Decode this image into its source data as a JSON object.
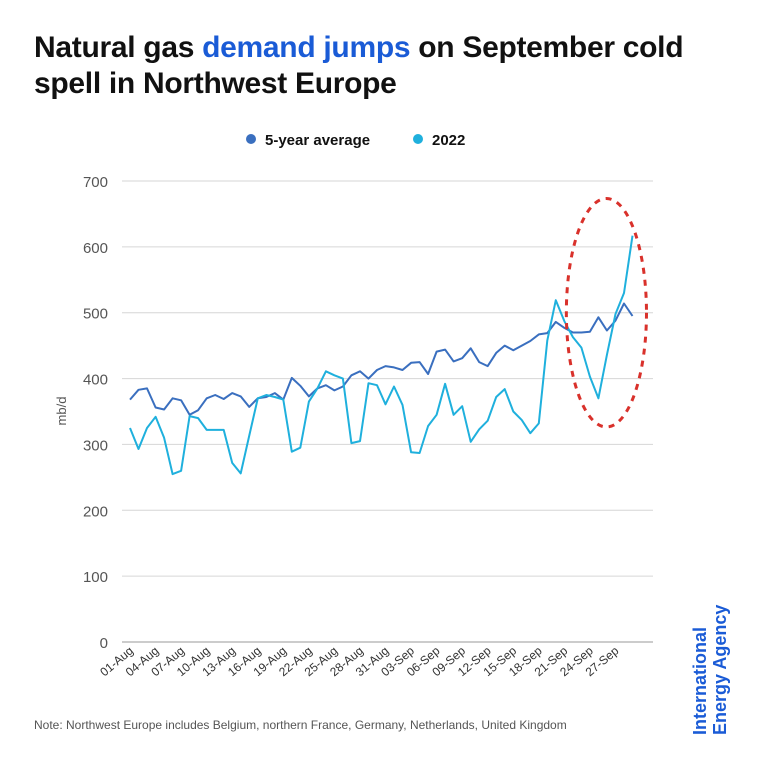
{
  "title": {
    "prefix": "Natural gas ",
    "highlight": "demand jumps",
    "suffix": " on September cold spell in Northwest Europe"
  },
  "colors": {
    "title_highlight": "#1a5bd6",
    "avg": "#3a6fbf",
    "y2022": "#1fb0dd",
    "ellipse": "#d9312b",
    "grid": "#d6d6d6",
    "brand": "#1a5bd6"
  },
  "chart_data": {
    "type": "line",
    "ylabel": "mb/d",
    "ylim": [
      0,
      700
    ],
    "yticks": [
      0,
      100,
      200,
      300,
      400,
      500,
      600,
      700
    ],
    "x": [
      "01-Aug",
      "02-Aug",
      "03-Aug",
      "04-Aug",
      "05-Aug",
      "06-Aug",
      "07-Aug",
      "08-Aug",
      "09-Aug",
      "10-Aug",
      "11-Aug",
      "12-Aug",
      "13-Aug",
      "14-Aug",
      "15-Aug",
      "16-Aug",
      "17-Aug",
      "18-Aug",
      "19-Aug",
      "20-Aug",
      "21-Aug",
      "22-Aug",
      "23-Aug",
      "24-Aug",
      "25-Aug",
      "26-Aug",
      "27-Aug",
      "28-Aug",
      "29-Aug",
      "30-Aug",
      "31-Aug",
      "01-Sep",
      "02-Sep",
      "03-Sep",
      "04-Sep",
      "05-Sep",
      "06-Sep",
      "07-Sep",
      "08-Sep",
      "09-Sep",
      "10-Sep",
      "11-Sep",
      "12-Sep",
      "13-Sep",
      "14-Sep",
      "15-Sep",
      "16-Sep",
      "17-Sep",
      "18-Sep",
      "19-Sep",
      "20-Sep",
      "21-Sep",
      "22-Sep",
      "23-Sep",
      "24-Sep",
      "25-Sep",
      "26-Sep",
      "27-Sep",
      "28-Sep",
      "29-Sep",
      "30-Sep"
    ],
    "xtick_labels": [
      "01-Aug",
      "04-Aug",
      "07-Aug",
      "10-Aug",
      "13-Aug",
      "16-Aug",
      "19-Aug",
      "22-Aug",
      "25-Aug",
      "28-Aug",
      "31-Aug",
      "03-Sep",
      "06-Sep",
      "09-Sep",
      "12-Sep",
      "15-Sep",
      "18-Sep",
      "21-Sep",
      "24-Sep",
      "27-Sep"
    ],
    "series": [
      {
        "name": "5-year average",
        "values": [
          368,
          383,
          385,
          356,
          353,
          370,
          367,
          345,
          352,
          370,
          375,
          369,
          378,
          373,
          357,
          370,
          372,
          378,
          368,
          401,
          389,
          373,
          385,
          390,
          382,
          388,
          405,
          411,
          400,
          413,
          419,
          417,
          413,
          424,
          425,
          407,
          441,
          444,
          426,
          431,
          446,
          425,
          419,
          439,
          450,
          443,
          450,
          457,
          467,
          469,
          486,
          477,
          470,
          470,
          471,
          493,
          473,
          488,
          514,
          495,
          null
        ]
      },
      {
        "name": "2022",
        "values": [
          325,
          293,
          325,
          342,
          310,
          255,
          260,
          343,
          340,
          322,
          322,
          322,
          272,
          256,
          313,
          370,
          375,
          372,
          368,
          289,
          295,
          365,
          385,
          411,
          405,
          400,
          302,
          305,
          393,
          390,
          361,
          388,
          360,
          288,
          287,
          328,
          345,
          392,
          345,
          358,
          304,
          323,
          336,
          372,
          384,
          350,
          337,
          317,
          332,
          458,
          519,
          487,
          463,
          447,
          403,
          370,
          436,
          498,
          530,
          617,
          null
        ]
      }
    ],
    "legend": [
      "5-year average",
      "2022"
    ],
    "annotation": "dashed ellipse highlighting late-September surge"
  },
  "note": "Note: Northwest Europe includes Belgium, northern France, Germany, Netherlands, United Kingdom",
  "brand": {
    "line1": "International",
    "line2": "Energy Agency"
  }
}
